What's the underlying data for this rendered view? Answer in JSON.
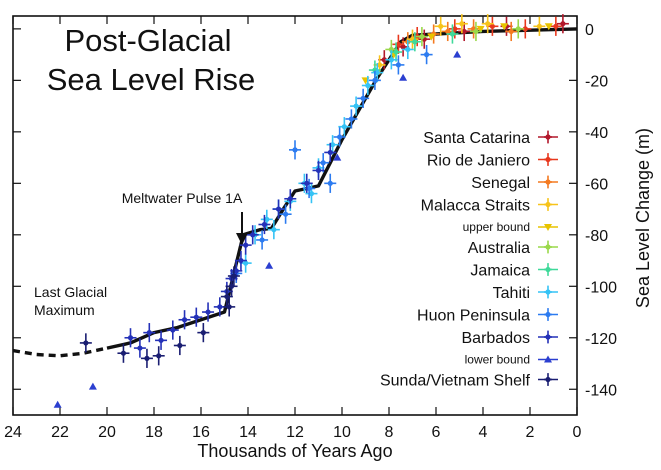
{
  "chart_data": {
    "type": "scatter",
    "title_lines": [
      "Post-Glacial",
      "Sea Level Rise"
    ],
    "xlabel": "Thousands of Years Ago",
    "ylabel": "Sea Level Change (m)",
    "xlim": [
      24,
      0
    ],
    "ylim": [
      -150,
      5
    ],
    "x_ticks": [
      24,
      22,
      20,
      18,
      16,
      14,
      12,
      10,
      8,
      6,
      4,
      2,
      0
    ],
    "y_ticks": [
      0,
      -20,
      -40,
      -60,
      -80,
      -100,
      -120,
      -140
    ],
    "grid": false,
    "legend_placement": "right",
    "series": [
      {
        "name": "Santa Catarina",
        "color": "#b2182b",
        "marker": "cross",
        "points": [
          [
            8.2,
            -12
          ],
          [
            7.4,
            -7
          ],
          [
            6.5,
            -4
          ],
          [
            4.8,
            -1
          ],
          [
            3.0,
            1
          ],
          [
            0.6,
            2
          ]
        ]
      },
      {
        "name": "Rio de Janiero",
        "color": "#e8381e",
        "marker": "cross",
        "points": [
          [
            7.6,
            -6
          ],
          [
            6.8,
            -3
          ],
          [
            5.2,
            0
          ],
          [
            3.6,
            1
          ],
          [
            2.2,
            0
          ],
          [
            0.9,
            1
          ]
        ]
      },
      {
        "name": "Senegal",
        "color": "#f47a20",
        "marker": "cross",
        "points": [
          [
            7.2,
            -5
          ],
          [
            6.1,
            -2
          ],
          [
            5.5,
            -1
          ],
          [
            4.4,
            0
          ],
          [
            2.8,
            -1
          ]
        ]
      },
      {
        "name": "Malacca Straits",
        "color": "#f7c31a",
        "marker": "cross",
        "points": [
          [
            8.4,
            -14
          ],
          [
            7.0,
            -4
          ],
          [
            5.8,
            1
          ],
          [
            4.9,
            2
          ],
          [
            3.8,
            2
          ],
          [
            1.6,
            1
          ]
        ]
      },
      {
        "name": "upper bound",
        "color": "#e8c400",
        "marker": "triangle-down",
        "points": [
          [
            9.0,
            -20
          ],
          [
            7.8,
            -10
          ],
          [
            6.2,
            -3
          ],
          [
            4.1,
            0
          ],
          [
            3.1,
            1
          ],
          [
            1.2,
            1
          ]
        ]
      },
      {
        "name": "Australia",
        "color": "#9ad84a",
        "marker": "cross",
        "points": [
          [
            7.9,
            -8
          ],
          [
            6.6,
            -3
          ],
          [
            4.3,
            -1
          ],
          [
            2.5,
            0
          ]
        ]
      },
      {
        "name": "Jamaica",
        "color": "#3fd99a",
        "marker": "cross",
        "points": [
          [
            8.6,
            -16
          ],
          [
            7.7,
            -9
          ],
          [
            6.9,
            -5
          ],
          [
            5.3,
            -2
          ]
        ]
      },
      {
        "name": "Tahiti",
        "color": "#35c3f5",
        "marker": "cross",
        "points": [
          [
            13.7,
            -80
          ],
          [
            13.2,
            -74
          ],
          [
            12.7,
            -70
          ],
          [
            12.2,
            -67
          ],
          [
            11.6,
            -60
          ],
          [
            11.0,
            -54
          ],
          [
            10.4,
            -45
          ],
          [
            9.9,
            -38
          ],
          [
            9.4,
            -30
          ],
          [
            8.9,
            -22
          ],
          [
            8.5,
            -17
          ],
          [
            7.9,
            -12
          ],
          [
            7.2,
            -8
          ],
          [
            14.1,
            -91
          ],
          [
            12.9,
            -78
          ],
          [
            11.3,
            -64
          ]
        ]
      },
      {
        "name": "Huon Peninsula",
        "color": "#2c7bf0",
        "marker": "cross",
        "points": [
          [
            14.5,
            -95
          ],
          [
            13.4,
            -82
          ],
          [
            12.4,
            -72
          ],
          [
            11.4,
            -62
          ],
          [
            10.8,
            -52
          ],
          [
            10.1,
            -42
          ],
          [
            9.6,
            -35
          ],
          [
            9.1,
            -27
          ],
          [
            8.6,
            -20
          ],
          [
            7.6,
            -14
          ],
          [
            6.4,
            -10
          ],
          [
            12.0,
            -47
          ],
          [
            10.5,
            -60
          ]
        ]
      },
      {
        "name": "Barbados",
        "color": "#2431b8",
        "marker": "cross",
        "points": [
          [
            19.0,
            -120
          ],
          [
            18.6,
            -124
          ],
          [
            18.2,
            -118
          ],
          [
            17.7,
            -121
          ],
          [
            17.2,
            -117
          ],
          [
            16.7,
            -113
          ],
          [
            16.2,
            -112
          ],
          [
            15.7,
            -110
          ],
          [
            15.2,
            -108
          ],
          [
            14.9,
            -102
          ],
          [
            14.7,
            -97
          ],
          [
            14.5,
            -94
          ],
          [
            14.3,
            -90
          ],
          [
            14.1,
            -84
          ],
          [
            13.8,
            -80
          ],
          [
            13.3,
            -76
          ],
          [
            12.7,
            -70
          ],
          [
            12.2,
            -66
          ],
          [
            11.5,
            -60
          ],
          [
            11.0,
            -55
          ],
          [
            10.5,
            -48
          ]
        ]
      },
      {
        "name": "lower bound",
        "color": "#2b3fd0",
        "marker": "triangle-up",
        "points": [
          [
            22.1,
            -146
          ],
          [
            20.6,
            -139
          ],
          [
            13.1,
            -92
          ],
          [
            7.4,
            -19
          ],
          [
            5.1,
            -10
          ],
          [
            10.2,
            -50
          ]
        ]
      },
      {
        "name": "Sunda/Vietnam Shelf",
        "color": "#1a1e72",
        "marker": "cross",
        "points": [
          [
            20.9,
            -122
          ],
          [
            19.3,
            -126
          ],
          [
            18.3,
            -128
          ],
          [
            17.8,
            -127
          ],
          [
            16.9,
            -123
          ],
          [
            15.9,
            -118
          ],
          [
            14.9,
            -104
          ],
          [
            14.7,
            -100
          ],
          [
            14.6,
            -96
          ],
          [
            14.8,
            -108
          ]
        ]
      }
    ],
    "trend_curve": {
      "points": [
        [
          24.0,
          -125
        ],
        [
          23.0,
          -126.5
        ],
        [
          22.0,
          -127
        ],
        [
          21.0,
          -126
        ],
        [
          20.0,
          -124
        ],
        [
          19.0,
          -122
        ],
        [
          18.0,
          -118
        ],
        [
          17.0,
          -116
        ],
        [
          16.0,
          -113
        ],
        [
          15.0,
          -110
        ],
        [
          14.6,
          -95
        ],
        [
          14.2,
          -80
        ],
        [
          13.5,
          -78
        ],
        [
          13.0,
          -77.5
        ],
        [
          12.5,
          -70
        ],
        [
          12.0,
          -63
        ],
        [
          11.5,
          -62
        ],
        [
          11.0,
          -61
        ],
        [
          10.5,
          -52
        ],
        [
          10.0,
          -43
        ],
        [
          9.5,
          -35
        ],
        [
          9.0,
          -27
        ],
        [
          8.5,
          -19
        ],
        [
          8.0,
          -12
        ],
        [
          7.5,
          -5
        ],
        [
          7.0,
          -2.5
        ],
        [
          6.0,
          -2
        ],
        [
          4.0,
          -1
        ],
        [
          2.0,
          -0.5
        ],
        [
          0.0,
          0
        ]
      ],
      "dashed_before": 20.0
    },
    "annotations": [
      {
        "text": "Meltwater Pulse 1A",
        "target": [
          14.6,
          -95
        ]
      },
      {
        "text": "Last Glacial",
        "line": 1
      },
      {
        "text": "Maximum",
        "line": 2
      }
    ]
  }
}
